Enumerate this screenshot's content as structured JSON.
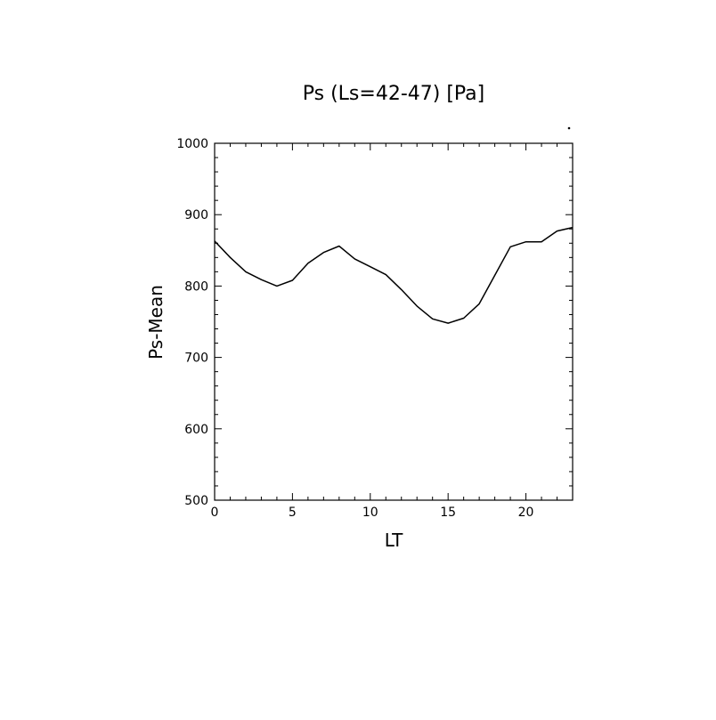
{
  "chart_data": {
    "type": "line",
    "title": "Ps (Ls=42-47) [Pa]",
    "xlabel": "LT",
    "ylabel": "Ps-Mean",
    "xlim": [
      0,
      23
    ],
    "ylim": [
      500,
      1000
    ],
    "x_ticks": [
      0,
      5,
      10,
      15,
      20
    ],
    "x_tick_labels": [
      "0",
      "5",
      "10",
      "15",
      "20"
    ],
    "y_ticks": [
      500,
      600,
      700,
      800,
      900,
      1000
    ],
    "y_tick_labels": [
      "500",
      "600",
      "700",
      "800",
      "900",
      "1000"
    ],
    "grid": false,
    "series": [
      {
        "x": [
          0,
          1,
          2,
          3,
          4,
          5,
          6,
          7,
          8,
          9,
          10,
          11,
          12,
          13,
          14,
          15,
          16,
          17,
          18,
          19,
          20,
          21,
          22,
          23
        ],
        "values": [
          863,
          840,
          820,
          809,
          800,
          808,
          832,
          847,
          856,
          838,
          827,
          816,
          795,
          772,
          754,
          748,
          755,
          775,
          815,
          855,
          862,
          862,
          877,
          882
        ]
      }
    ],
    "colors": {
      "line": "#000000",
      "axes": "#000000",
      "background": "#ffffff"
    }
  }
}
